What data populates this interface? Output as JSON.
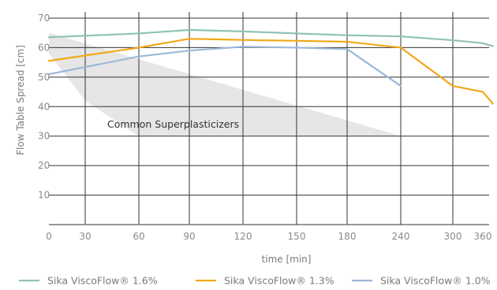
{
  "chart_data": {
    "type": "line",
    "xlabel": "time [min]",
    "ylabel": "Flow Table Spread [cm]",
    "xlim": [
      0,
      380
    ],
    "ylim": [
      0,
      70
    ],
    "x_ticks": [
      0,
      30,
      60,
      90,
      120,
      150,
      180,
      240,
      300,
      360
    ],
    "x_tick_labels": [
      "0",
      "30",
      "60",
      "90",
      "120",
      "150",
      "180",
      "240",
      "300",
      "360"
    ],
    "y_ticks": [
      10,
      20,
      30,
      40,
      50,
      60,
      70
    ],
    "y_tick_labels": [
      "10",
      "20",
      "30",
      "40",
      "50",
      "60",
      "70"
    ],
    "grid": true,
    "legend_position": "bottom",
    "annotation": {
      "label": "Common Superplasticizers",
      "region_upper": [
        [
          0,
          65
        ],
        [
          240,
          30
        ]
      ],
      "region_lower": [
        [
          0,
          58
        ],
        [
          30,
          42
        ],
        [
          60,
          30
        ]
      ]
    },
    "series": [
      {
        "name": "Sika ViscoFlow® 1.6%",
        "color": "#8fc2b6",
        "x": [
          0,
          60,
          90,
          120,
          150,
          180,
          240,
          300,
          360,
          380
        ],
        "y": [
          63.5,
          64.8,
          66,
          65.5,
          64.8,
          64.2,
          63.8,
          62.5,
          61.5,
          60.5
        ]
      },
      {
        "name": "Sika ViscoFlow® 1.3%",
        "color": "#f2a818",
        "x": [
          0,
          60,
          90,
          120,
          150,
          180,
          240,
          300,
          360,
          380
        ],
        "y": [
          55.5,
          60,
          63,
          62.6,
          62.3,
          62,
          60,
          47,
          45,
          41
        ]
      },
      {
        "name": "Sika ViscoFlow® 1.0%",
        "color": "#9db8d8",
        "x": [
          0,
          60,
          90,
          120,
          150,
          180,
          240
        ],
        "y": [
          51,
          57,
          59,
          60.3,
          60,
          59.5,
          47
        ]
      }
    ]
  }
}
